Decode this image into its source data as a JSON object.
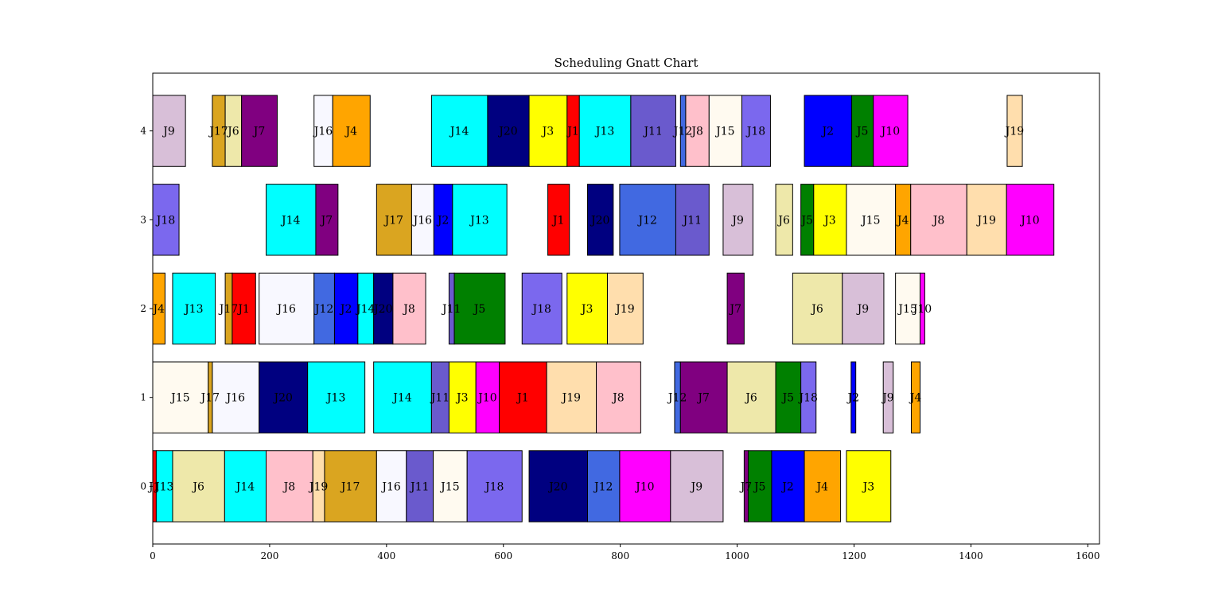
{
  "chart_data": {
    "type": "gantt",
    "title": "Scheduling Gnatt Chart",
    "xlabel": "",
    "ylabel": "",
    "xlim": [
      0,
      1620
    ],
    "ylim": [
      -0.65,
      4.65
    ],
    "xticks": [
      0,
      200,
      400,
      600,
      800,
      1000,
      1200,
      1400,
      1600
    ],
    "yticks": [
      0,
      1,
      2,
      3,
      4
    ],
    "grid": false,
    "job_colors": {
      "J1": "#ff0000",
      "J2": "#0000ff",
      "J3": "#ffff00",
      "J4": "#ffa500",
      "J5": "#008000",
      "J6": "#eee8aa",
      "J7": "#800080",
      "J8": "#ffc0cb",
      "J9": "#d8bfd8",
      "J10": "#ff00ff",
      "J11": "#6a5acd",
      "J12": "#4169e1",
      "J13": "#00ffff",
      "J14": "#00ffff",
      "J15": "#fffaf0",
      "J16": "#f8f8ff",
      "J17": "#daa520",
      "J18": "#7b68ee",
      "J19": "#ffdead",
      "J20": "#000080"
    },
    "tasks": [
      {
        "machine": 0,
        "job": "J1",
        "start": 0,
        "end": 6
      },
      {
        "machine": 0,
        "job": "J13",
        "start": 6,
        "end": 34
      },
      {
        "machine": 0,
        "job": "J6",
        "start": 34,
        "end": 123
      },
      {
        "machine": 0,
        "job": "J14",
        "start": 123,
        "end": 194
      },
      {
        "machine": 0,
        "job": "J8",
        "start": 194,
        "end": 274
      },
      {
        "machine": 0,
        "job": "J19",
        "start": 274,
        "end": 294
      },
      {
        "machine": 0,
        "job": "J17",
        "start": 294,
        "end": 383
      },
      {
        "machine": 0,
        "job": "J16",
        "start": 383,
        "end": 434
      },
      {
        "machine": 0,
        "job": "J11",
        "start": 434,
        "end": 480
      },
      {
        "machine": 0,
        "job": "J15",
        "start": 480,
        "end": 538
      },
      {
        "machine": 0,
        "job": "J18",
        "start": 538,
        "end": 632
      },
      {
        "machine": 0,
        "job": "J20",
        "start": 644,
        "end": 744
      },
      {
        "machine": 0,
        "job": "J12",
        "start": 744,
        "end": 799
      },
      {
        "machine": 0,
        "job": "J10",
        "start": 799,
        "end": 886
      },
      {
        "machine": 0,
        "job": "J9",
        "start": 886,
        "end": 976
      },
      {
        "machine": 0,
        "job": "J7",
        "start": 1012,
        "end": 1019
      },
      {
        "machine": 0,
        "job": "J5",
        "start": 1019,
        "end": 1059
      },
      {
        "machine": 0,
        "job": "J2",
        "start": 1059,
        "end": 1115
      },
      {
        "machine": 0,
        "job": "J4",
        "start": 1115,
        "end": 1177
      },
      {
        "machine": 0,
        "job": "J3",
        "start": 1187,
        "end": 1263
      },
      {
        "machine": 1,
        "job": "J15",
        "start": 0,
        "end": 95
      },
      {
        "machine": 1,
        "job": "J17",
        "start": 95,
        "end": 102
      },
      {
        "machine": 1,
        "job": "J16",
        "start": 102,
        "end": 182
      },
      {
        "machine": 1,
        "job": "J20",
        "start": 182,
        "end": 265
      },
      {
        "machine": 1,
        "job": "J13",
        "start": 265,
        "end": 363
      },
      {
        "machine": 1,
        "job": "J14",
        "start": 378,
        "end": 477
      },
      {
        "machine": 1,
        "job": "J11",
        "start": 477,
        "end": 507
      },
      {
        "machine": 1,
        "job": "J3",
        "start": 507,
        "end": 553
      },
      {
        "machine": 1,
        "job": "J10",
        "start": 553,
        "end": 593
      },
      {
        "machine": 1,
        "job": "J1",
        "start": 593,
        "end": 674
      },
      {
        "machine": 1,
        "job": "J19",
        "start": 674,
        "end": 759
      },
      {
        "machine": 1,
        "job": "J8",
        "start": 759,
        "end": 835
      },
      {
        "machine": 1,
        "job": "J12",
        "start": 893,
        "end": 903
      },
      {
        "machine": 1,
        "job": "J7",
        "start": 903,
        "end": 983
      },
      {
        "machine": 1,
        "job": "J6",
        "start": 983,
        "end": 1066
      },
      {
        "machine": 1,
        "job": "J5",
        "start": 1066,
        "end": 1109
      },
      {
        "machine": 1,
        "job": "J18",
        "start": 1109,
        "end": 1135
      },
      {
        "machine": 1,
        "job": "J2",
        "start": 1195,
        "end": 1203
      },
      {
        "machine": 1,
        "job": "J9",
        "start": 1250,
        "end": 1267
      },
      {
        "machine": 1,
        "job": "J4",
        "start": 1298,
        "end": 1313
      },
      {
        "machine": 2,
        "job": "J4",
        "start": 0,
        "end": 21
      },
      {
        "machine": 2,
        "job": "J13",
        "start": 34,
        "end": 107
      },
      {
        "machine": 2,
        "job": "J17",
        "start": 124,
        "end": 136
      },
      {
        "machine": 2,
        "job": "J1",
        "start": 136,
        "end": 176
      },
      {
        "machine": 2,
        "job": "J16",
        "start": 182,
        "end": 276
      },
      {
        "machine": 2,
        "job": "J12",
        "start": 276,
        "end": 311
      },
      {
        "machine": 2,
        "job": "J2",
        "start": 311,
        "end": 351
      },
      {
        "machine": 2,
        "job": "J14",
        "start": 351,
        "end": 378
      },
      {
        "machine": 2,
        "job": "J20",
        "start": 378,
        "end": 411
      },
      {
        "machine": 2,
        "job": "J8",
        "start": 411,
        "end": 467
      },
      {
        "machine": 2,
        "job": "J11",
        "start": 507,
        "end": 516
      },
      {
        "machine": 2,
        "job": "J5",
        "start": 516,
        "end": 603
      },
      {
        "machine": 2,
        "job": "J18",
        "start": 632,
        "end": 700
      },
      {
        "machine": 2,
        "job": "J3",
        "start": 709,
        "end": 778
      },
      {
        "machine": 2,
        "job": "J19",
        "start": 778,
        "end": 839
      },
      {
        "machine": 2,
        "job": "J7",
        "start": 983,
        "end": 1012
      },
      {
        "machine": 2,
        "job": "J6",
        "start": 1095,
        "end": 1180
      },
      {
        "machine": 2,
        "job": "J9",
        "start": 1180,
        "end": 1251
      },
      {
        "machine": 2,
        "job": "J15",
        "start": 1271,
        "end": 1313
      },
      {
        "machine": 2,
        "job": "J10",
        "start": 1313,
        "end": 1321
      },
      {
        "machine": 3,
        "job": "J18",
        "start": 0,
        "end": 45
      },
      {
        "machine": 3,
        "job": "J14",
        "start": 194,
        "end": 279
      },
      {
        "machine": 3,
        "job": "J7",
        "start": 279,
        "end": 317
      },
      {
        "machine": 3,
        "job": "J17",
        "start": 383,
        "end": 443
      },
      {
        "machine": 3,
        "job": "J16",
        "start": 443,
        "end": 481
      },
      {
        "machine": 3,
        "job": "J2",
        "start": 481,
        "end": 513
      },
      {
        "machine": 3,
        "job": "J13",
        "start": 513,
        "end": 606
      },
      {
        "machine": 3,
        "job": "J1",
        "start": 676,
        "end": 713
      },
      {
        "machine": 3,
        "job": "J20",
        "start": 744,
        "end": 788
      },
      {
        "machine": 3,
        "job": "J12",
        "start": 799,
        "end": 895
      },
      {
        "machine": 3,
        "job": "J11",
        "start": 895,
        "end": 952
      },
      {
        "machine": 3,
        "job": "J9",
        "start": 976,
        "end": 1027
      },
      {
        "machine": 3,
        "job": "J6",
        "start": 1066,
        "end": 1095
      },
      {
        "machine": 3,
        "job": "J5",
        "start": 1109,
        "end": 1131
      },
      {
        "machine": 3,
        "job": "J3",
        "start": 1131,
        "end": 1187
      },
      {
        "machine": 3,
        "job": "J15",
        "start": 1187,
        "end": 1271
      },
      {
        "machine": 3,
        "job": "J4",
        "start": 1271,
        "end": 1297
      },
      {
        "machine": 3,
        "job": "J8",
        "start": 1297,
        "end": 1393
      },
      {
        "machine": 3,
        "job": "J19",
        "start": 1393,
        "end": 1461
      },
      {
        "machine": 3,
        "job": "J10",
        "start": 1461,
        "end": 1542
      },
      {
        "machine": 4,
        "job": "J9",
        "start": 0,
        "end": 56
      },
      {
        "machine": 4,
        "job": "J17",
        "start": 102,
        "end": 124
      },
      {
        "machine": 4,
        "job": "J6",
        "start": 124,
        "end": 152
      },
      {
        "machine": 4,
        "job": "J7",
        "start": 152,
        "end": 213
      },
      {
        "machine": 4,
        "job": "J16",
        "start": 276,
        "end": 308
      },
      {
        "machine": 4,
        "job": "J4",
        "start": 308,
        "end": 372
      },
      {
        "machine": 4,
        "job": "J14",
        "start": 477,
        "end": 573
      },
      {
        "machine": 4,
        "job": "J20",
        "start": 573,
        "end": 644
      },
      {
        "machine": 4,
        "job": "J3",
        "start": 644,
        "end": 709
      },
      {
        "machine": 4,
        "job": "J1",
        "start": 709,
        "end": 730
      },
      {
        "machine": 4,
        "job": "J13",
        "start": 730,
        "end": 818
      },
      {
        "machine": 4,
        "job": "J11",
        "start": 818,
        "end": 895
      },
      {
        "machine": 4,
        "job": "J12",
        "start": 903,
        "end": 912
      },
      {
        "machine": 4,
        "job": "J8",
        "start": 912,
        "end": 952
      },
      {
        "machine": 4,
        "job": "J15",
        "start": 952,
        "end": 1008
      },
      {
        "machine": 4,
        "job": "J18",
        "start": 1008,
        "end": 1057
      },
      {
        "machine": 4,
        "job": "J2",
        "start": 1115,
        "end": 1196
      },
      {
        "machine": 4,
        "job": "J5",
        "start": 1196,
        "end": 1233
      },
      {
        "machine": 4,
        "job": "J10",
        "start": 1233,
        "end": 1292
      },
      {
        "machine": 4,
        "job": "J19",
        "start": 1462,
        "end": 1488
      }
    ]
  }
}
